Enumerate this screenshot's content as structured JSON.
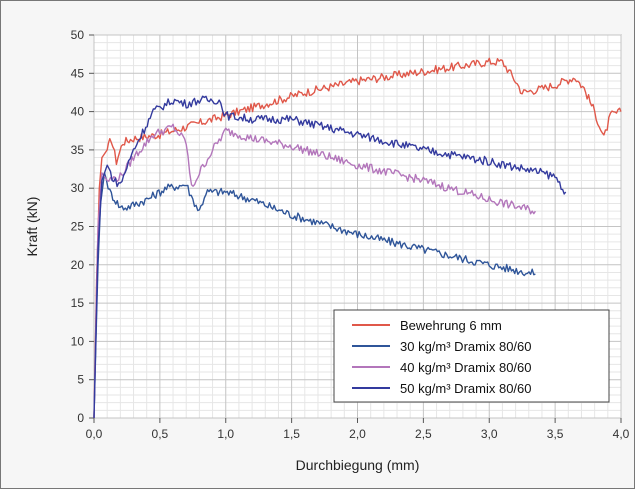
{
  "chart_data": {
    "type": "line",
    "xlabel": "Durchbiegung (mm)",
    "ylabel": "Kraft (kN)",
    "xlim": [
      0,
      4
    ],
    "ylim": [
      0,
      50
    ],
    "x_ticks": [
      "0,0",
      "0,5",
      "1,0",
      "1,5",
      "2,0",
      "2,5",
      "3,0",
      "3,5",
      "4,0"
    ],
    "y_ticks": [
      "0",
      "5",
      "10",
      "15",
      "20",
      "25",
      "30",
      "35",
      "40",
      "45",
      "50"
    ],
    "grid": true,
    "legend_position": "bottom-right",
    "series": [
      {
        "name": "Bewehrung 6 mm",
        "color": "#e0584a",
        "points": [
          [
            0,
            0
          ],
          [
            0.02,
            18
          ],
          [
            0.04,
            30
          ],
          [
            0.06,
            34
          ],
          [
            0.1,
            35
          ],
          [
            0.13,
            36.5
          ],
          [
            0.17,
            33.5
          ],
          [
            0.22,
            36
          ],
          [
            0.3,
            36.5
          ],
          [
            0.5,
            37
          ],
          [
            0.7,
            38
          ],
          [
            1.0,
            39.5
          ],
          [
            1.3,
            41
          ],
          [
            1.6,
            42.5
          ],
          [
            2.0,
            44
          ],
          [
            2.4,
            45
          ],
          [
            2.8,
            46
          ],
          [
            3.0,
            46.5
          ],
          [
            3.1,
            46.5
          ],
          [
            3.2,
            44
          ],
          [
            3.25,
            42.5
          ],
          [
            3.4,
            43
          ],
          [
            3.5,
            43.5
          ],
          [
            3.65,
            44.5
          ],
          [
            3.72,
            43
          ],
          [
            3.8,
            40
          ],
          [
            3.87,
            36.5
          ],
          [
            3.92,
            39.5
          ],
          [
            4.0,
            40
          ]
        ]
      },
      {
        "name": "30 kg/m³ Dramix 80/60",
        "color": "#2f5599",
        "points": [
          [
            0,
            0
          ],
          [
            0.03,
            20
          ],
          [
            0.05,
            28
          ],
          [
            0.08,
            32
          ],
          [
            0.12,
            29.5
          ],
          [
            0.2,
            27.5
          ],
          [
            0.25,
            27.5
          ],
          [
            0.4,
            28.5
          ],
          [
            0.55,
            30
          ],
          [
            0.7,
            30.5
          ],
          [
            0.75,
            28.5
          ],
          [
            0.8,
            27
          ],
          [
            0.85,
            29.5
          ],
          [
            1.0,
            29.5
          ],
          [
            1.2,
            28.5
          ],
          [
            1.5,
            26.5
          ],
          [
            2.0,
            24
          ],
          [
            2.5,
            22
          ],
          [
            3.0,
            20
          ],
          [
            3.35,
            18.8
          ]
        ]
      },
      {
        "name": "40 kg/m³ Dramix 80/60",
        "color": "#b376bb",
        "points": [
          [
            0,
            0
          ],
          [
            0.03,
            25
          ],
          [
            0.06,
            32
          ],
          [
            0.1,
            31
          ],
          [
            0.2,
            31.5
          ],
          [
            0.3,
            34
          ],
          [
            0.45,
            37
          ],
          [
            0.6,
            38
          ],
          [
            0.7,
            36
          ],
          [
            0.74,
            30
          ],
          [
            0.8,
            32
          ],
          [
            0.9,
            35
          ],
          [
            1.0,
            37.5
          ],
          [
            1.2,
            36.5
          ],
          [
            1.5,
            35.5
          ],
          [
            2.0,
            33
          ],
          [
            2.5,
            31
          ],
          [
            3.0,
            28.5
          ],
          [
            3.35,
            27
          ]
        ]
      },
      {
        "name": "50 kg/m³ Dramix 80/60",
        "color": "#333a9e",
        "points": [
          [
            0,
            0
          ],
          [
            0.03,
            22
          ],
          [
            0.06,
            31
          ],
          [
            0.1,
            33
          ],
          [
            0.15,
            31
          ],
          [
            0.2,
            30.5
          ],
          [
            0.3,
            35
          ],
          [
            0.45,
            40
          ],
          [
            0.6,
            41.5
          ],
          [
            0.7,
            41
          ],
          [
            0.8,
            41.5
          ],
          [
            0.95,
            41.5
          ],
          [
            1.0,
            39.5
          ],
          [
            1.2,
            39
          ],
          [
            1.5,
            39
          ],
          [
            2.0,
            37
          ],
          [
            2.5,
            35
          ],
          [
            3.0,
            33.5
          ],
          [
            3.4,
            32
          ],
          [
            3.5,
            31.5
          ],
          [
            3.58,
            29.5
          ]
        ]
      }
    ]
  }
}
